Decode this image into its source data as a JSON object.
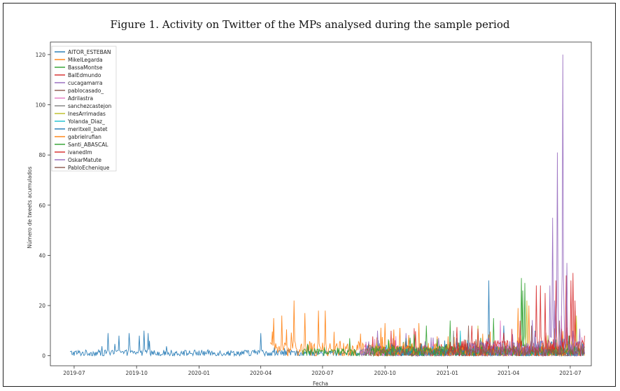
{
  "title": "Figure 1. Activity on Twitter of the MPs analysed during the sample period",
  "chart_data": {
    "type": "line",
    "xlabel": "Fecha",
    "ylabel": "Número de tweets acumulados",
    "xlim": [
      "2019-05-27",
      "2021-08-01"
    ],
    "ylim": [
      -4,
      125
    ],
    "grid": false,
    "legend_position": "top-left",
    "x_ticks": [
      "2019-07-01",
      "2019-10-01",
      "2020-01-01",
      "2020-04-01",
      "2020-07-01",
      "2020-10-01",
      "2021-01-01",
      "2021-04-01",
      "2021-07-01"
    ],
    "x_tick_labels": [
      "2019-07",
      "2019-10",
      "2020-01",
      "2020-04",
      "2020-07",
      "2020-10",
      "2021-01",
      "2021-04",
      "2021-07"
    ],
    "y_ticks": [
      0,
      20,
      40,
      60,
      80,
      100,
      120
    ],
    "series": [
      {
        "name": "AITOR_ESTEBAN",
        "color": "#1f77b4",
        "start": "2019-06-25",
        "base": 1.2,
        "noise": 2.5,
        "peaks": [
          [
            "2019-08-20",
            9
          ],
          [
            "2019-09-05",
            8
          ],
          [
            "2019-09-20",
            9
          ],
          [
            "2019-10-05",
            8
          ],
          [
            "2019-10-12",
            10
          ],
          [
            "2019-10-18",
            9
          ],
          [
            "2020-04-01",
            9
          ],
          [
            "2021-03-03",
            30
          ],
          [
            "2021-05-10",
            10
          ]
        ]
      },
      {
        "name": "MikelLegarda",
        "color": "#ff7f0e",
        "start": "2020-04-15",
        "base": 2.5,
        "noise": 6,
        "peaks": [
          [
            "2020-04-20",
            15
          ],
          [
            "2020-05-02",
            16
          ],
          [
            "2020-05-20",
            22
          ],
          [
            "2020-06-05",
            17
          ],
          [
            "2020-06-25",
            18
          ],
          [
            "2020-07-05",
            18
          ],
          [
            "2020-10-01",
            13
          ],
          [
            "2020-11-20",
            13
          ],
          [
            "2021-04-15",
            19
          ]
        ]
      },
      {
        "name": "BassaMontse",
        "color": "#2ca02c",
        "start": "2020-06-01",
        "base": 1.5,
        "noise": 3,
        "peaks": [
          [
            "2020-08-10",
            7
          ],
          [
            "2020-12-01",
            12
          ],
          [
            "2021-03-10",
            15
          ],
          [
            "2021-04-20",
            31
          ],
          [
            "2021-04-25",
            29
          ]
        ]
      },
      {
        "name": "BalEdmundo",
        "color": "#d62728",
        "start": "2020-09-01",
        "base": 2,
        "noise": 5,
        "peaks": [
          [
            "2021-05-12",
            28
          ],
          [
            "2021-05-25",
            25
          ],
          [
            "2021-06-10",
            30
          ],
          [
            "2021-07-05",
            33
          ]
        ]
      },
      {
        "name": "cucagamarra",
        "color": "#9467bd",
        "start": "2020-08-25",
        "base": 2,
        "noise": 4,
        "peaks": [
          [
            "2020-09-20",
            10
          ],
          [
            "2020-11-01",
            9
          ],
          [
            "2021-06-08",
            22
          ]
        ]
      },
      {
        "name": "pablocasado_",
        "color": "#8c564b",
        "start": "2020-09-01",
        "base": 1.5,
        "noise": 3,
        "peaks": [
          [
            "2021-02-01",
            12
          ],
          [
            "2021-06-15",
            14
          ]
        ]
      },
      {
        "name": "Adrilastra",
        "color": "#e377c2",
        "start": "2020-08-25",
        "base": 1.5,
        "noise": 4,
        "peaks": [
          [
            "2021-03-20",
            14
          ],
          [
            "2021-06-18",
            16
          ]
        ]
      },
      {
        "name": "sanchezcastejon",
        "color": "#7f7f7f",
        "start": "2020-09-01",
        "base": 1.5,
        "noise": 3,
        "peaks": [
          [
            "2021-01-10",
            10
          ]
        ]
      },
      {
        "name": "InesArrimadas",
        "color": "#bcbd22",
        "start": "2020-09-15",
        "base": 2,
        "noise": 4,
        "peaks": [
          [
            "2021-02-15",
            12
          ],
          [
            "2021-04-28",
            22
          ],
          [
            "2021-07-10",
            16
          ]
        ]
      },
      {
        "name": "Yolanda_Diaz_",
        "color": "#17becf",
        "start": "2020-10-01",
        "base": 1.5,
        "noise": 3,
        "peaks": [
          [
            "2021-01-20",
            10
          ]
        ]
      },
      {
        "name": "meritxell_batet",
        "color": "#1f77b4",
        "start": "2020-10-01",
        "base": 1.5,
        "noise": 3,
        "peaks": [
          [
            "2021-03-25",
            12
          ]
        ]
      },
      {
        "name": "gabrielrufian",
        "color": "#ff7f0e",
        "start": "2020-09-15",
        "base": 2,
        "noise": 4,
        "peaks": [
          [
            "2021-05-01",
            20
          ],
          [
            "2021-07-08",
            18
          ]
        ]
      },
      {
        "name": "Santi_ABASCAL",
        "color": "#2ca02c",
        "start": "2020-09-10",
        "base": 2,
        "noise": 4,
        "peaks": [
          [
            "2021-01-05",
            14
          ],
          [
            "2021-04-22",
            26
          ]
        ]
      },
      {
        "name": "ivanedlm",
        "color": "#d62728",
        "start": "2021-01-01",
        "base": 3,
        "noise": 7,
        "peaks": [
          [
            "2021-05-18",
            28
          ],
          [
            "2021-06-25",
            32
          ],
          [
            "2021-07-02",
            30
          ],
          [
            "2021-07-08",
            22
          ]
        ]
      },
      {
        "name": "OskarMatute",
        "color": "#9467bd",
        "start": "2021-02-01",
        "base": 3,
        "noise": 7,
        "peaks": [
          [
            "2021-06-05",
            55
          ],
          [
            "2021-06-12",
            81
          ],
          [
            "2021-06-20",
            120
          ],
          [
            "2021-06-26",
            37
          ],
          [
            "2021-06-01",
            28
          ]
        ]
      },
      {
        "name": "PabloEchenique",
        "color": "#8c564b",
        "start": "2020-09-20",
        "base": 1.5,
        "noise": 3,
        "peaks": [
          [
            "2021-05-05",
            12
          ]
        ]
      }
    ]
  }
}
